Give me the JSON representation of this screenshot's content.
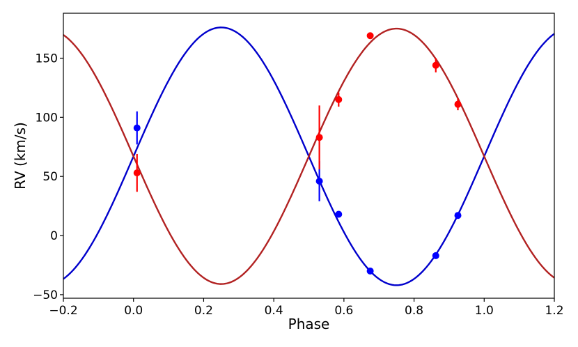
{
  "chart_data": {
    "type": "line",
    "xlabel": "Phase",
    "ylabel": "RV (km/s)",
    "xlim": [
      -0.2,
      1.2
    ],
    "ylim": [
      -53,
      188
    ],
    "xticks": [
      -0.2,
      0.0,
      0.2,
      0.4,
      0.6,
      0.8,
      1.0,
      1.2
    ],
    "xtick_labels": [
      "−0.2",
      "0.0",
      "0.2",
      "0.4",
      "0.6",
      "0.8",
      "1.0",
      "1.2"
    ],
    "yticks": [
      -50,
      0,
      50,
      100,
      150
    ],
    "ytick_labels": [
      "−50",
      "0",
      "50",
      "100",
      "150"
    ],
    "grid": false,
    "curves": [
      {
        "color": "#0000cc",
        "gamma": 67,
        "amplitude": 109,
        "phase_of_max": 0.25
      },
      {
        "color": "#b22222",
        "gamma": 67,
        "amplitude": 108,
        "phase_of_max": 0.75
      }
    ],
    "series": [
      {
        "color": "#0000ff",
        "points": [
          {
            "x": 0.01,
            "y": 91,
            "err": 14
          },
          {
            "x": 0.53,
            "y": 46,
            "err": 17
          },
          {
            "x": 0.585,
            "y": 18,
            "err": 2
          },
          {
            "x": 0.675,
            "y": -30,
            "err": 1
          },
          {
            "x": 0.862,
            "y": -17,
            "err": 2
          },
          {
            "x": 0.925,
            "y": 17,
            "err": 2
          }
        ]
      },
      {
        "color": "#ff0000",
        "points": [
          {
            "x": 0.01,
            "y": 53,
            "err": 16
          },
          {
            "x": 0.53,
            "y": 83,
            "err": 27
          },
          {
            "x": 0.585,
            "y": 115,
            "err": 6
          },
          {
            "x": 0.675,
            "y": 169,
            "err": 2
          },
          {
            "x": 0.862,
            "y": 144,
            "err": 6
          },
          {
            "x": 0.925,
            "y": 111,
            "err": 5
          }
        ]
      }
    ]
  }
}
